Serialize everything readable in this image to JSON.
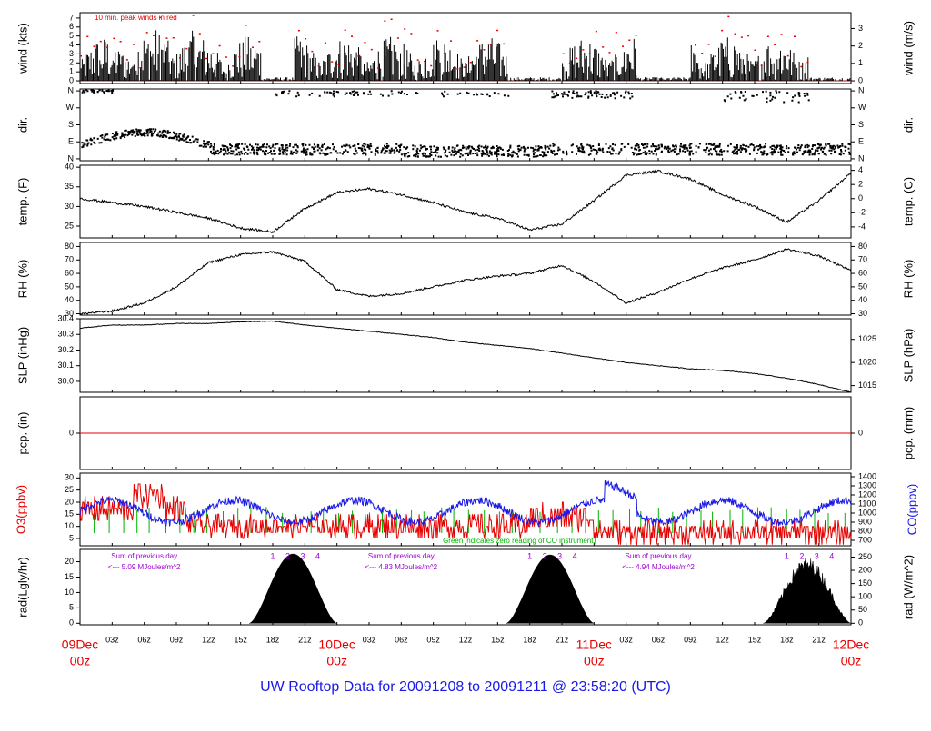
{
  "footer": {
    "title": "UW Rooftop Data for 20091208  to  20091211 @ 23:58:20  (UTC)"
  },
  "colors": {
    "red": "#e60000",
    "blue": "#1a1ae6",
    "green": "#00b300",
    "purple": "#9900cc",
    "black": "#000000"
  },
  "time_axis": {
    "hour_ticks": [
      "03z",
      "06z",
      "09z",
      "12z",
      "15z",
      "18z",
      "21z"
    ],
    "days": [
      {
        "date": "09Dec",
        "hour": "00z"
      },
      {
        "date": "10Dec",
        "hour": "00z"
      },
      {
        "date": "11Dec",
        "hour": "00z"
      },
      {
        "date": "12Dec",
        "hour": "00z"
      }
    ]
  },
  "panels": {
    "wind": {
      "left_label": "wind (kts)",
      "right_label": "wind (m/s)",
      "annotation": "10 min. peak winds in red",
      "left_ticks": [
        "0",
        "1",
        "2",
        "3",
        "4",
        "5",
        "6",
        "7"
      ],
      "right_ticks": [
        "0",
        "1",
        "2",
        "3"
      ]
    },
    "dir": {
      "left_label": "dir.",
      "right_label": "dir.",
      "left_ticks": [
        "N",
        "E",
        "S",
        "W",
        "N"
      ],
      "right_ticks": [
        "N",
        "E",
        "S",
        "W",
        "N"
      ]
    },
    "temp": {
      "left_label": "temp. (F)",
      "right_label": "temp. (C)",
      "left_ticks": [
        "25",
        "30",
        "35",
        "40"
      ],
      "right_ticks": [
        "-4",
        "-2",
        "0",
        "2",
        "4"
      ]
    },
    "rh": {
      "left_label": "RH (%)",
      "right_label": "RH (%)",
      "left_ticks": [
        "30",
        "40",
        "50",
        "60",
        "70",
        "80"
      ],
      "right_ticks": [
        "30",
        "40",
        "50",
        "60",
        "70",
        "80"
      ]
    },
    "slp": {
      "left_label": "SLP (inHg)",
      "right_label": "SLP (hPa)",
      "left_ticks": [
        "30.0",
        "30.1",
        "30.2",
        "30.3",
        "30.4"
      ],
      "right_ticks": [
        "1015",
        "1020",
        "1025"
      ]
    },
    "pcp": {
      "left_label": "pcp. (in)",
      "right_label": "pcp. (mm)",
      "left_ticks": [
        "0"
      ],
      "right_ticks": [
        "0"
      ]
    },
    "o3co": {
      "left_label": "O3(ppbv)",
      "right_label": "CO(ppbv)",
      "annotation": "Green indicates zero reading of CO instrument.",
      "left_ticks": [
        "5",
        "10",
        "15",
        "20",
        "25",
        "30"
      ],
      "right_ticks": [
        "700",
        "800",
        "900",
        "1000",
        "1100",
        "1200",
        "1300",
        "1400"
      ]
    },
    "rad": {
      "left_label": "rad(Lgly/hr)",
      "right_label": "rad (W/m^2)",
      "left_ticks": [
        "0",
        "5",
        "10",
        "15",
        "20"
      ],
      "right_ticks": [
        "0",
        "50",
        "100",
        "150",
        "200",
        "250"
      ],
      "day_notes": [
        {
          "line1": "Sum of previous day",
          "line2": "<--- 5.09 MJoules/m^2"
        },
        {
          "line1": "Sum of previous day",
          "line2": "<--- 4.83 MJoules/m^2"
        },
        {
          "line1": "Sum of previous day",
          "line2": "<--- 4.94 MJoules/m^2"
        }
      ],
      "hour_markers": [
        "1",
        "2",
        "3",
        "4"
      ]
    }
  },
  "chart_data": {
    "type": "line",
    "title": "UW Rooftop Data for 20091208  to  20091211 @ 23:58:20  (UTC)",
    "x": [
      "09Dec 00z",
      "09Dec 03z",
      "09Dec 06z",
      "09Dec 09z",
      "09Dec 12z",
      "09Dec 15z",
      "09Dec 18z",
      "09Dec 21z",
      "10Dec 00z",
      "10Dec 03z",
      "10Dec 06z",
      "10Dec 09z",
      "10Dec 12z",
      "10Dec 15z",
      "10Dec 18z",
      "10Dec 21z",
      "11Dec 00z",
      "11Dec 03z",
      "11Dec 06z",
      "11Dec 09z",
      "11Dec 12z",
      "11Dec 15z",
      "11Dec 18z",
      "11Dec 21z",
      "12Dec 00z"
    ],
    "series": [
      {
        "name": "temp. (F)",
        "values": [
          32,
          31,
          30,
          28.5,
          27,
          24.5,
          23.5,
          29.5,
          33.5,
          34.5,
          33,
          31,
          28.5,
          27,
          24,
          25.5,
          31.5,
          38,
          39,
          37,
          33,
          30,
          26,
          31.5,
          38.5
        ]
      },
      {
        "name": "RH (%)",
        "values": [
          30,
          32,
          38,
          50,
          68,
          74,
          76,
          69,
          48,
          43,
          45,
          50,
          55,
          58,
          60,
          66,
          54,
          38,
          46,
          56,
          64,
          70,
          78,
          73,
          62
        ]
      },
      {
        "name": "SLP (inHg)",
        "values": [
          30.34,
          30.36,
          30.36,
          30.37,
          30.37,
          30.38,
          30.385,
          30.36,
          30.34,
          30.32,
          30.3,
          30.28,
          30.25,
          30.23,
          30.21,
          30.18,
          30.15,
          30.12,
          30.1,
          30.08,
          30.07,
          30.05,
          30.02,
          29.98,
          29.93
        ]
      }
    ],
    "daily_radiation_MJ_per_m2": [
      5.09,
      4.83,
      4.94
    ],
    "ylims": {
      "wind_kts": [
        0,
        7.5
      ],
      "temp_F": [
        22,
        40
      ],
      "rh_pct": [
        30,
        82
      ],
      "slp_inHg": [
        29.93,
        30.4
      ],
      "o3_ppbv": [
        2,
        32
      ],
      "rad_lgly_hr": [
        0,
        24
      ]
    }
  }
}
